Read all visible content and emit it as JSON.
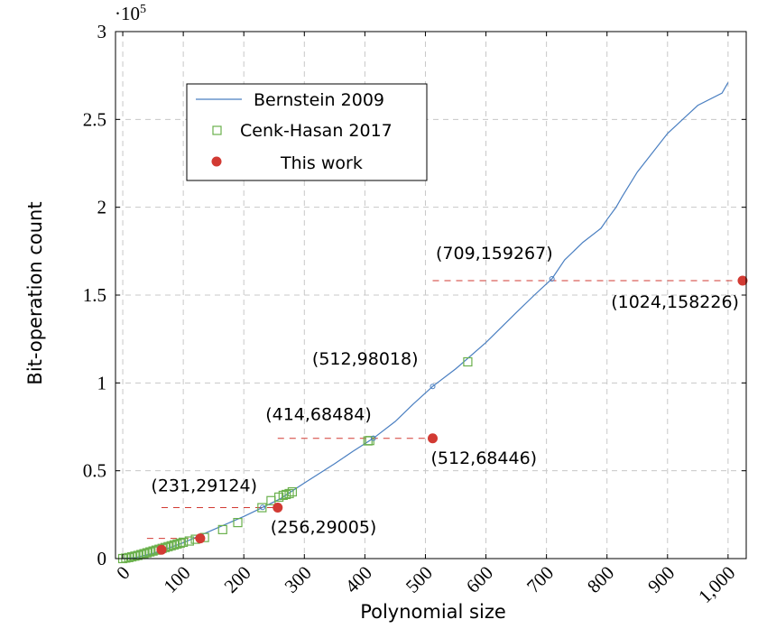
{
  "chart_data": {
    "type": "line",
    "xlabel": "Polynomial size",
    "ylabel": "Bit-operation count",
    "y_exponent_label": "·10",
    "y_exponent_power": "5",
    "xlim": [
      -12,
      1030
    ],
    "ylim": [
      0,
      3
    ],
    "xticks": [
      0,
      100,
      200,
      300,
      400,
      500,
      600,
      700,
      800,
      900,
      1000
    ],
    "xtick_labels": [
      "0",
      "100",
      "200",
      "300",
      "400",
      "500",
      "600",
      "700",
      "800",
      "900",
      "1,000"
    ],
    "yticks": [
      0,
      0.5,
      1,
      1.5,
      2,
      2.5,
      3
    ],
    "ytick_labels": [
      "0",
      "0.5",
      "1",
      "1.5",
      "2",
      "2.5",
      "3"
    ],
    "grid": true,
    "legend_position": "top-left",
    "series": [
      {
        "name": "Bernstein 2009",
        "color": "#4a7fc1",
        "style": "line",
        "x": [
          0,
          20,
          50,
          80,
          100,
          130,
          160,
          200,
          231,
          260,
          300,
          350,
          380,
          414,
          450,
          480,
          512,
          550,
          600,
          650,
          680,
          709,
          730,
          760,
          790,
          800,
          815,
          825,
          850,
          900,
          950,
          990,
          1000
        ],
        "y": [
          0.0,
          0.005,
          0.03,
          0.065,
          0.09,
          0.135,
          0.18,
          0.24,
          0.29124,
          0.34,
          0.43,
          0.54,
          0.61,
          0.68484,
          0.78,
          0.88,
          0.98018,
          1.08,
          1.23,
          1.4,
          1.5,
          1.59267,
          1.7,
          1.8,
          1.88,
          1.93,
          2.0,
          2.06,
          2.2,
          2.42,
          2.58,
          2.65,
          2.71
        ]
      },
      {
        "name": "Cenk-Hasan 2017",
        "color": "#6ab04c",
        "style": "open-square",
        "x": [
          0,
          5,
          10,
          15,
          20,
          25,
          30,
          35,
          40,
          45,
          50,
          55,
          60,
          65,
          70,
          75,
          80,
          85,
          90,
          95,
          100,
          110,
          120,
          135,
          165,
          190,
          230,
          245,
          258,
          265,
          270,
          275,
          280,
          405,
          408,
          570
        ],
        "y": [
          0.0,
          0.003,
          0.006,
          0.01,
          0.014,
          0.018,
          0.023,
          0.028,
          0.033,
          0.038,
          0.043,
          0.048,
          0.053,
          0.058,
          0.063,
          0.068,
          0.073,
          0.078,
          0.083,
          0.088,
          0.093,
          0.1,
          0.11,
          0.12,
          0.165,
          0.205,
          0.29,
          0.33,
          0.35,
          0.36,
          0.365,
          0.37,
          0.38,
          0.67,
          0.672,
          1.12
        ]
      },
      {
        "name": "This work",
        "color": "#d23a33",
        "style": "filled-circle",
        "x": [
          64,
          128,
          256,
          512,
          1024
        ],
        "y": [
          0.05,
          0.115,
          0.29005,
          0.68446,
          1.58226
        ]
      }
    ],
    "reference_markers": [
      {
        "x": 231,
        "y": 0.29124
      },
      {
        "x": 414,
        "y": 0.68484
      },
      {
        "x": 512,
        "y": 0.98018
      },
      {
        "x": 709,
        "y": 1.59267
      }
    ],
    "dashed_links": [
      {
        "x1": 40,
        "x2": 128,
        "y": 0.115
      },
      {
        "x1": 64,
        "x2": 256,
        "y": 0.29005
      },
      {
        "x1": 256,
        "x2": 512,
        "y": 0.68446
      },
      {
        "x1": 512,
        "x2": 1024,
        "y": 1.58226
      }
    ],
    "annotations": [
      {
        "text": "(231,29124)",
        "x": 231,
        "y": 0.29124,
        "anchor": "end",
        "dx": -6,
        "dy": -18
      },
      {
        "text": "(256,29005)",
        "x": 256,
        "y": 0.29005,
        "anchor": "start",
        "dx": -8,
        "dy": 28
      },
      {
        "text": "(414,68484)",
        "x": 414,
        "y": 0.68484,
        "anchor": "end",
        "dx": -2,
        "dy": -20
      },
      {
        "text": "(512,68446)",
        "x": 512,
        "y": 0.68446,
        "anchor": "start",
        "dx": -2,
        "dy": 28
      },
      {
        "text": "(512,98018)",
        "x": 512,
        "y": 0.98018,
        "anchor": "end",
        "dx": -16,
        "dy": -24
      },
      {
        "text": "(709,159267)",
        "x": 709,
        "y": 1.59267,
        "anchor": "end",
        "dx": 1,
        "dy": -22
      },
      {
        "text": "(1024,158226)",
        "x": 1024,
        "y": 1.58226,
        "anchor": "end",
        "dx": -4,
        "dy": 30
      }
    ]
  }
}
